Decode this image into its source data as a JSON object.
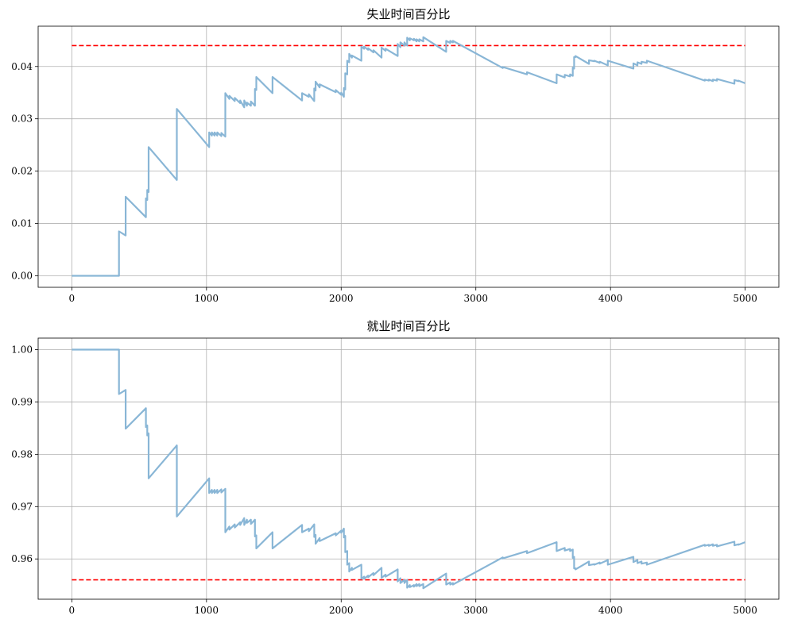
{
  "chart_data": [
    {
      "type": "line",
      "title": "失业时间百分比",
      "xlabel": "",
      "ylabel": "",
      "xlim": [
        -250,
        5250
      ],
      "ylim": [
        -0.0022,
        0.0477
      ],
      "xticks": [
        0,
        1000,
        2000,
        3000,
        4000,
        5000
      ],
      "xtick_labels": [
        "0",
        "1000",
        "2000",
        "3000",
        "4000",
        "5000"
      ],
      "yticks": [
        0.0,
        0.01,
        0.02,
        0.03,
        0.04
      ],
      "ytick_labels": [
        "0.00",
        "0.01",
        "0.02",
        "0.03",
        "0.04"
      ],
      "grid": true,
      "reference_line": {
        "y": 0.044,
        "color": "#ff0000",
        "style": "dashed"
      },
      "series": [
        {
          "color": "#89b6d6",
          "x": [
            0,
            350,
            350,
            400,
            400,
            550,
            550,
            560,
            560,
            570,
            570,
            780,
            780,
            1020,
            1020,
            1040,
            1040,
            1060,
            1060,
            1080,
            1080,
            1110,
            1110,
            1140,
            1140,
            1170,
            1170,
            1210,
            1210,
            1250,
            1250,
            1280,
            1280,
            1300,
            1300,
            1330,
            1330,
            1360,
            1360,
            1370,
            1370,
            1490,
            1490,
            1710,
            1710,
            1760,
            1760,
            1800,
            1800,
            1810,
            1810,
            1840,
            1840,
            1960,
            1960,
            2000,
            2000,
            2020,
            2020,
            2030,
            2030,
            2045,
            2045,
            2060,
            2060,
            2080,
            2080,
            2150,
            2150,
            2170,
            2170,
            2200,
            2200,
            2240,
            2240,
            2300,
            2300,
            2330,
            2330,
            2420,
            2420,
            2440,
            2440,
            2470,
            2470,
            2490,
            2490,
            2510,
            2510,
            2540,
            2540,
            2560,
            2560,
            2580,
            2580,
            2610,
            2610,
            2780,
            2780,
            2810,
            2810,
            2830,
            2830,
            3200,
            3200,
            3380,
            3380,
            3600,
            3600,
            3660,
            3660,
            3700,
            3700,
            3720,
            3720,
            3730,
            3730,
            3740,
            3740,
            3840,
            3840,
            3880,
            3880,
            3920,
            3920,
            3980,
            3980,
            4170,
            4170,
            4200,
            4200,
            4230,
            4230,
            4270,
            4270,
            4700,
            4700,
            4730,
            4730,
            4760,
            4760,
            4790,
            4790,
            4920,
            4920,
            4950,
            4950,
            5000
          ],
          "values": [
            0.0,
            0.0,
            0.0085,
            0.0077,
            0.0151,
            0.0112,
            0.0148,
            0.0145,
            0.0164,
            0.016,
            0.0246,
            0.0183,
            0.0319,
            0.0246,
            0.0274,
            0.0268,
            0.0274,
            0.0268,
            0.0274,
            0.0268,
            0.0274,
            0.0267,
            0.0273,
            0.0266,
            0.0349,
            0.0338,
            0.0344,
            0.0334,
            0.034,
            0.033,
            0.0335,
            0.0322,
            0.0335,
            0.0325,
            0.0331,
            0.0325,
            0.0333,
            0.0325,
            0.0357,
            0.0355,
            0.038,
            0.0349,
            0.038,
            0.0335,
            0.0349,
            0.0342,
            0.0347,
            0.0334,
            0.0358,
            0.0354,
            0.0371,
            0.036,
            0.0366,
            0.0351,
            0.0355,
            0.0346,
            0.035,
            0.0342,
            0.0359,
            0.0356,
            0.0387,
            0.0385,
            0.0411,
            0.0408,
            0.0424,
            0.0417,
            0.0421,
            0.0411,
            0.0438,
            0.0434,
            0.0438,
            0.0432,
            0.0435,
            0.0427,
            0.0431,
            0.0417,
            0.0436,
            0.043,
            0.0434,
            0.042,
            0.0443,
            0.0437,
            0.0446,
            0.044,
            0.0446,
            0.044,
            0.0455,
            0.045,
            0.0454,
            0.045,
            0.0453,
            0.0448,
            0.0452,
            0.0448,
            0.0452,
            0.0448,
            0.0456,
            0.0428,
            0.0449,
            0.0445,
            0.0449,
            0.0446,
            0.0449,
            0.0397,
            0.0399,
            0.0385,
            0.0389,
            0.0368,
            0.0385,
            0.0379,
            0.0384,
            0.0381,
            0.0385,
            0.0382,
            0.0398,
            0.0396,
            0.0418,
            0.0418,
            0.042,
            0.0405,
            0.0412,
            0.041,
            0.0411,
            0.0407,
            0.0409,
            0.0402,
            0.0411,
            0.0396,
            0.0406,
            0.0402,
            0.0408,
            0.0405,
            0.0409,
            0.0407,
            0.0411,
            0.0373,
            0.0375,
            0.0373,
            0.0375,
            0.0372,
            0.0375,
            0.0373,
            0.0376,
            0.0367,
            0.0374,
            0.0372,
            0.0373,
            0.0368
          ]
        }
      ]
    },
    {
      "type": "line",
      "title": "就业时间百分比",
      "xlabel": "",
      "ylabel": "",
      "xlim": [
        -250,
        5250
      ],
      "ylim": [
        0.9523,
        1.0022
      ],
      "xticks": [
        0,
        1000,
        2000,
        3000,
        4000,
        5000
      ],
      "xtick_labels": [
        "0",
        "1000",
        "2000",
        "3000",
        "4000",
        "5000"
      ],
      "yticks": [
        0.96,
        0.97,
        0.98,
        0.99,
        1.0
      ],
      "ytick_labels": [
        "0.96",
        "0.97",
        "0.98",
        "0.99",
        "1.00"
      ],
      "grid": true,
      "reference_line": {
        "y": 0.956,
        "color": "#ff0000",
        "style": "dashed"
      },
      "series": [
        {
          "color": "#89b6d6",
          "x": [
            0,
            350,
            350,
            400,
            400,
            550,
            550,
            560,
            560,
            570,
            570,
            780,
            780,
            1020,
            1020,
            1040,
            1040,
            1060,
            1060,
            1080,
            1080,
            1110,
            1110,
            1140,
            1140,
            1170,
            1170,
            1210,
            1210,
            1250,
            1250,
            1280,
            1280,
            1300,
            1300,
            1330,
            1330,
            1360,
            1360,
            1370,
            1370,
            1490,
            1490,
            1710,
            1710,
            1760,
            1760,
            1800,
            1800,
            1810,
            1810,
            1840,
            1840,
            1960,
            1960,
            2000,
            2000,
            2020,
            2020,
            2030,
            2030,
            2045,
            2045,
            2060,
            2060,
            2080,
            2080,
            2150,
            2150,
            2170,
            2170,
            2200,
            2200,
            2240,
            2240,
            2300,
            2300,
            2330,
            2330,
            2420,
            2420,
            2440,
            2440,
            2470,
            2470,
            2490,
            2490,
            2510,
            2510,
            2540,
            2540,
            2560,
            2560,
            2580,
            2580,
            2610,
            2610,
            2780,
            2780,
            2810,
            2810,
            2830,
            2830,
            3200,
            3200,
            3380,
            3380,
            3600,
            3600,
            3660,
            3660,
            3700,
            3700,
            3720,
            3720,
            3730,
            3730,
            3740,
            3740,
            3840,
            3840,
            3880,
            3880,
            3920,
            3920,
            3980,
            3980,
            4170,
            4170,
            4200,
            4200,
            4230,
            4230,
            4270,
            4270,
            4700,
            4700,
            4730,
            4730,
            4760,
            4760,
            4790,
            4790,
            4920,
            4920,
            4950,
            4950,
            5000
          ],
          "values": [
            1.0,
            1.0,
            0.9915,
            0.9923,
            0.9849,
            0.9888,
            0.9852,
            0.9855,
            0.9836,
            0.984,
            0.9754,
            0.9817,
            0.9681,
            0.9754,
            0.9726,
            0.9732,
            0.9726,
            0.9732,
            0.9726,
            0.9732,
            0.9726,
            0.9733,
            0.9727,
            0.9734,
            0.9651,
            0.9662,
            0.9656,
            0.9666,
            0.966,
            0.967,
            0.9665,
            0.9678,
            0.9665,
            0.9675,
            0.9669,
            0.9675,
            0.9667,
            0.9675,
            0.9643,
            0.9645,
            0.962,
            0.9651,
            0.962,
            0.9665,
            0.9651,
            0.9658,
            0.9653,
            0.9666,
            0.9642,
            0.9646,
            0.9629,
            0.964,
            0.9634,
            0.9649,
            0.9645,
            0.9654,
            0.965,
            0.9658,
            0.9641,
            0.9644,
            0.9613,
            0.9615,
            0.9589,
            0.9592,
            0.9576,
            0.9583,
            0.9579,
            0.9589,
            0.9562,
            0.9566,
            0.9562,
            0.9568,
            0.9565,
            0.9573,
            0.9569,
            0.9583,
            0.9564,
            0.957,
            0.9566,
            0.958,
            0.9557,
            0.9563,
            0.9554,
            0.956,
            0.9554,
            0.956,
            0.9545,
            0.955,
            0.9546,
            0.955,
            0.9547,
            0.9552,
            0.9548,
            0.9552,
            0.9548,
            0.9552,
            0.9544,
            0.9572,
            0.9551,
            0.9555,
            0.9551,
            0.9554,
            0.9551,
            0.9603,
            0.9601,
            0.9615,
            0.9611,
            0.9632,
            0.9615,
            0.9621,
            0.9616,
            0.9619,
            0.9615,
            0.9618,
            0.9602,
            0.9604,
            0.9582,
            0.9582,
            0.958,
            0.9595,
            0.9588,
            0.959,
            0.9589,
            0.9593,
            0.9591,
            0.9598,
            0.9589,
            0.9604,
            0.9594,
            0.9598,
            0.9592,
            0.9595,
            0.9591,
            0.9593,
            0.9589,
            0.9627,
            0.9625,
            0.9627,
            0.9625,
            0.9628,
            0.9625,
            0.9627,
            0.9624,
            0.9633,
            0.9626,
            0.9628,
            0.9627,
            0.9632
          ]
        }
      ]
    }
  ]
}
